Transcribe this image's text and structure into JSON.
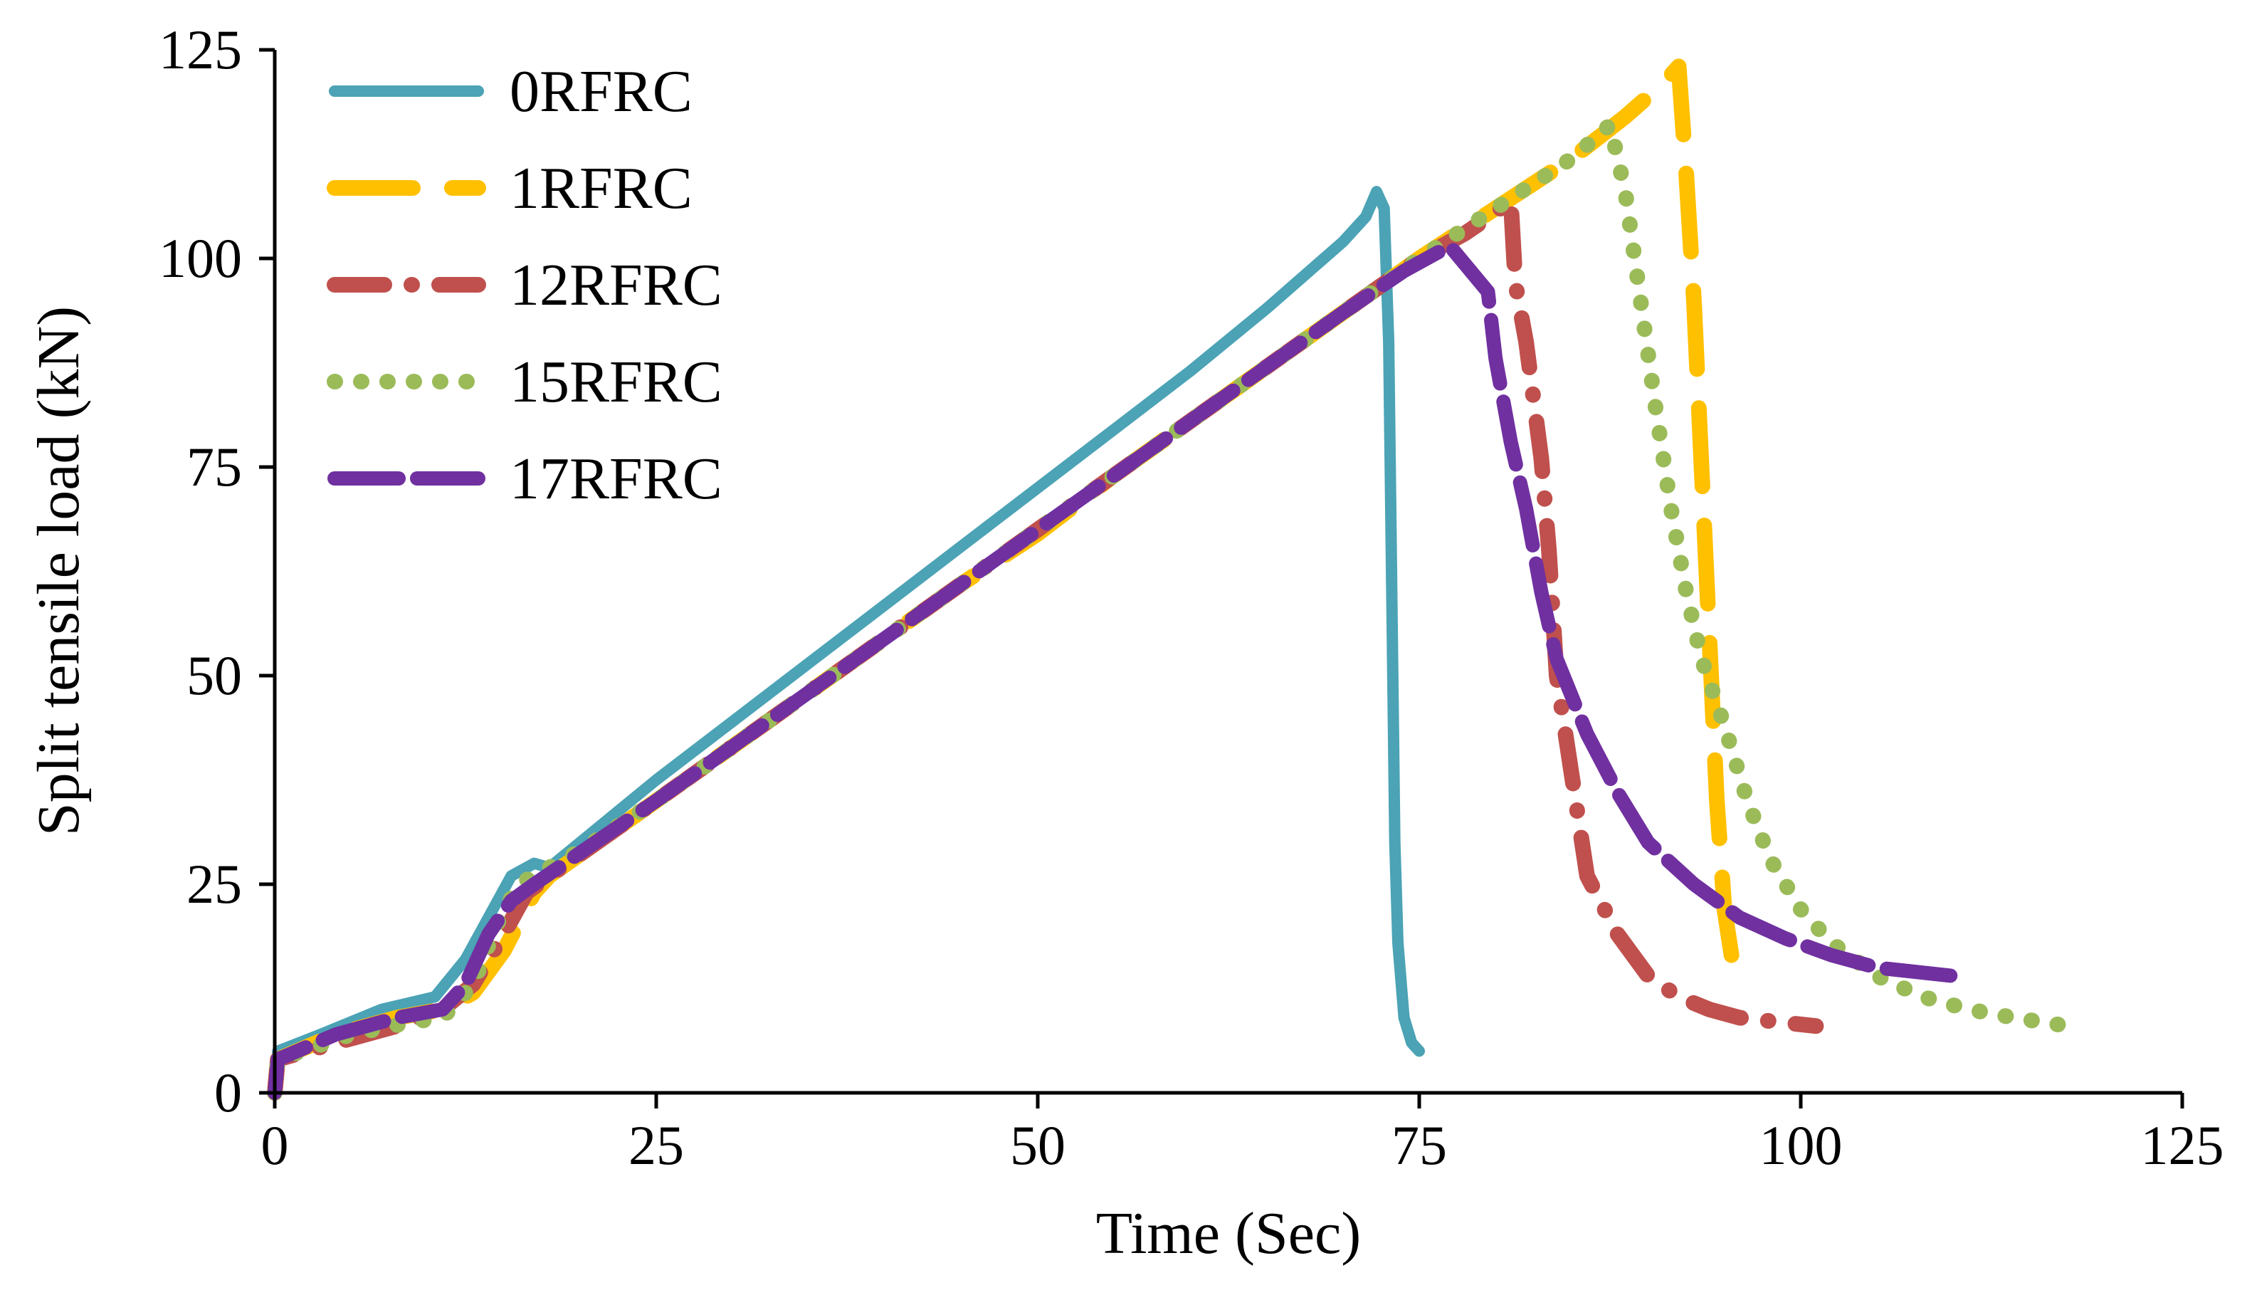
{
  "chart_data": {
    "type": "line",
    "title": "",
    "xlabel": "Time (Sec)",
    "ylabel": "Split tensile load (kN)",
    "xlim": [
      0,
      125
    ],
    "ylim": [
      0,
      125
    ],
    "x_ticks": [
      0,
      25,
      50,
      75,
      100,
      125
    ],
    "y_ticks": [
      0,
      25,
      50,
      75,
      100,
      125
    ],
    "x_tick_labels": [
      "0",
      "25",
      "50",
      "75",
      "100",
      "125"
    ],
    "y_tick_labels": [
      "0",
      "25",
      "50",
      "75",
      "100",
      "125"
    ],
    "grid": false,
    "legend_position": "top-left",
    "series": [
      {
        "name": "0RFRC",
        "color": "#4BA3B5",
        "style": "solid",
        "points": [
          [
            0,
            0
          ],
          [
            0.2,
            5
          ],
          [
            3,
            7
          ],
          [
            7,
            10
          ],
          [
            10.5,
            11.5
          ],
          [
            12.5,
            16
          ],
          [
            14,
            21
          ],
          [
            15.5,
            26
          ],
          [
            17,
            27.5
          ],
          [
            18,
            27
          ],
          [
            20,
            30
          ],
          [
            25,
            37.5
          ],
          [
            30,
            44.5
          ],
          [
            35,
            51.5
          ],
          [
            40,
            58.5
          ],
          [
            45,
            65.5
          ],
          [
            50,
            72.5
          ],
          [
            55,
            79.5
          ],
          [
            60,
            86.5
          ],
          [
            65,
            94
          ],
          [
            70,
            102
          ],
          [
            71.5,
            105
          ],
          [
            72.2,
            108
          ],
          [
            72.7,
            106
          ],
          [
            73,
            90
          ],
          [
            73.2,
            60
          ],
          [
            73.4,
            30
          ],
          [
            73.6,
            18
          ],
          [
            74,
            9
          ],
          [
            74.5,
            6
          ],
          [
            75,
            5
          ]
        ]
      },
      {
        "name": "1RFRC",
        "color": "#FFC000",
        "style": "dash",
        "points": [
          [
            0,
            0
          ],
          [
            0.2,
            4
          ],
          [
            4,
            7
          ],
          [
            8,
            9
          ],
          [
            11,
            10
          ],
          [
            13,
            12
          ],
          [
            15,
            17
          ],
          [
            17,
            24
          ],
          [
            18,
            26
          ],
          [
            25,
            35
          ],
          [
            30,
            41.5
          ],
          [
            35,
            48
          ],
          [
            40,
            54.5
          ],
          [
            45,
            61
          ],
          [
            50,
            67
          ],
          [
            55,
            74
          ],
          [
            60,
            80.5
          ],
          [
            65,
            87
          ],
          [
            70,
            93.5
          ],
          [
            75,
            100
          ],
          [
            80,
            106
          ],
          [
            85,
            112
          ],
          [
            88.5,
            117
          ],
          [
            91,
            121
          ],
          [
            92,
            123
          ],
          [
            92.5,
            110
          ],
          [
            93,
            95
          ],
          [
            93.5,
            75
          ],
          [
            94,
            55
          ],
          [
            94.5,
            35
          ],
          [
            95,
            22
          ],
          [
            95.5,
            16
          ]
        ]
      },
      {
        "name": "12RFRC",
        "color": "#C0504D",
        "style": "dashdot",
        "points": [
          [
            0,
            0
          ],
          [
            0.2,
            4
          ],
          [
            4,
            6
          ],
          [
            8,
            8
          ],
          [
            11,
            10
          ],
          [
            13,
            13
          ],
          [
            15,
            19
          ],
          [
            16.5,
            24
          ],
          [
            18,
            26
          ],
          [
            25,
            35
          ],
          [
            30,
            41.5
          ],
          [
            35,
            48
          ],
          [
            40,
            54.5
          ],
          [
            45,
            61
          ],
          [
            50,
            67.5
          ],
          [
            55,
            74
          ],
          [
            60,
            80.5
          ],
          [
            65,
            87
          ],
          [
            70,
            93.5
          ],
          [
            75,
            100
          ],
          [
            78,
            103
          ],
          [
            80,
            105.5
          ],
          [
            81,
            107
          ],
          [
            81.3,
            97
          ],
          [
            82,
            90
          ],
          [
            83,
            76
          ],
          [
            83.5,
            65
          ],
          [
            84,
            50
          ],
          [
            85,
            38
          ],
          [
            86,
            26
          ],
          [
            88,
            19
          ],
          [
            90,
            14
          ],
          [
            92,
            11.5
          ],
          [
            94,
            10
          ],
          [
            96,
            9
          ],
          [
            98.5,
            8.5
          ],
          [
            101,
            8
          ]
        ]
      },
      {
        "name": "15RFRC",
        "color": "#9BBB59",
        "style": "dot",
        "points": [
          [
            0,
            0
          ],
          [
            0.2,
            4
          ],
          [
            5,
            7
          ],
          [
            9,
            8.5
          ],
          [
            11,
            9
          ],
          [
            13,
            13
          ],
          [
            14.5,
            20
          ],
          [
            16,
            25
          ],
          [
            20,
            29
          ],
          [
            25,
            35
          ],
          [
            30,
            41.5
          ],
          [
            35,
            48
          ],
          [
            40,
            54.5
          ],
          [
            45,
            61
          ],
          [
            50,
            67.5
          ],
          [
            55,
            74
          ],
          [
            60,
            80.5
          ],
          [
            65,
            87
          ],
          [
            70,
            93.5
          ],
          [
            75,
            100
          ],
          [
            80,
            106
          ],
          [
            85,
            112
          ],
          [
            87.5,
            116
          ],
          [
            88.5,
            108
          ],
          [
            89.5,
            95
          ],
          [
            90.5,
            82
          ],
          [
            91.5,
            70
          ],
          [
            92.5,
            60
          ],
          [
            93.5,
            52
          ],
          [
            95,
            44
          ],
          [
            96.5,
            35
          ],
          [
            98,
            28
          ],
          [
            100,
            22
          ],
          [
            102,
            18
          ],
          [
            105,
            14
          ],
          [
            108,
            11.5
          ],
          [
            111,
            10
          ],
          [
            114,
            9
          ],
          [
            117.5,
            8
          ]
        ]
      },
      {
        "name": "17RFRC",
        "color": "#7030A0",
        "style": "longdash",
        "points": [
          [
            0,
            0
          ],
          [
            0.2,
            4
          ],
          [
            4,
            7
          ],
          [
            8,
            9
          ],
          [
            11,
            10
          ],
          [
            12.5,
            13
          ],
          [
            14,
            19
          ],
          [
            15.5,
            23
          ],
          [
            17,
            25
          ],
          [
            25,
            35
          ],
          [
            30,
            41.5
          ],
          [
            35,
            48
          ],
          [
            40,
            54.5
          ],
          [
            45,
            61
          ],
          [
            50,
            67.5
          ],
          [
            55,
            74
          ],
          [
            60,
            80.5
          ],
          [
            65,
            87
          ],
          [
            70,
            93.5
          ],
          [
            74,
            98.5
          ],
          [
            77,
            101.5
          ],
          [
            79.5,
            96
          ],
          [
            80,
            88
          ],
          [
            81,
            78
          ],
          [
            82,
            70
          ],
          [
            83,
            60
          ],
          [
            84,
            52
          ],
          [
            86,
            43
          ],
          [
            88,
            36
          ],
          [
            90,
            30
          ],
          [
            93,
            25
          ],
          [
            96,
            21
          ],
          [
            99,
            18.5
          ],
          [
            102,
            16.5
          ],
          [
            105,
            15
          ],
          [
            110,
            14
          ]
        ]
      }
    ]
  }
}
